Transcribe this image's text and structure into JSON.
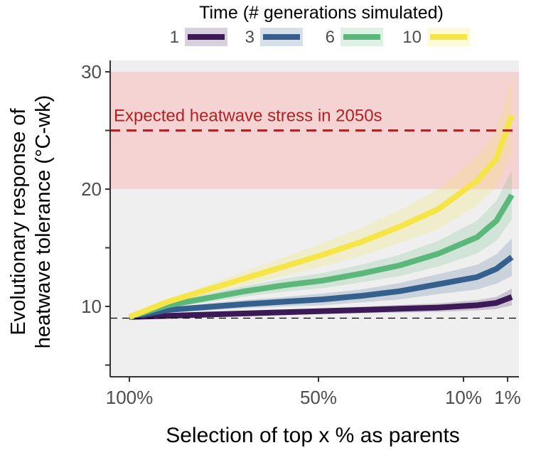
{
  "chart_data": {
    "type": "line",
    "xlabel": "Selection of top x % as parents",
    "ylabel_lines": [
      "Evolutionary response of",
      "heatwave tolerance (°C-wk)"
    ],
    "x": [
      100,
      90,
      80,
      70,
      60,
      50,
      40,
      30,
      20,
      10,
      5,
      1
    ],
    "xlim": [
      100,
      1
    ],
    "x_ticks": [
      100,
      50,
      10,
      1
    ],
    "x_tick_labels": [
      "100%",
      "50%",
      "10%",
      "1%"
    ],
    "ylim": [
      4.5,
      31
    ],
    "y_ticks_major": [
      10,
      20,
      30
    ],
    "y_tick_labels": [
      "10",
      "20",
      "30"
    ],
    "y_ticks_minor": [
      5,
      15,
      25
    ],
    "legend": {
      "title": "Time (# generations simulated)",
      "position": "top"
    },
    "series": [
      {
        "name": "1",
        "color": "#3b1a57",
        "values": [
          9.1,
          9.2,
          9.3,
          9.4,
          9.5,
          9.6,
          9.7,
          9.8,
          9.9,
          10.1,
          10.3,
          10.8
        ],
        "lower": [
          9.1,
          9.12,
          9.18,
          9.24,
          9.3,
          9.36,
          9.42,
          9.48,
          9.54,
          9.66,
          9.78,
          10.08
        ],
        "upper": [
          9.1,
          9.28,
          9.42,
          9.56,
          9.7,
          9.84,
          9.98,
          10.12,
          10.26,
          10.54,
          10.82,
          11.52
        ]
      },
      {
        "name": "3",
        "color": "#35608d",
        "values": [
          9.1,
          9.7,
          9.95,
          10.2,
          10.4,
          10.6,
          10.9,
          11.3,
          11.9,
          12.5,
          13.2,
          14.2
        ],
        "lower": [
          9.1,
          9.5,
          9.65,
          9.85,
          10.0,
          10.1,
          10.35,
          10.6,
          11.05,
          11.45,
          11.95,
          12.6
        ],
        "upper": [
          9.1,
          9.9,
          10.25,
          10.55,
          10.8,
          11.1,
          11.45,
          12.0,
          12.75,
          13.55,
          14.45,
          15.8
        ]
      },
      {
        "name": "6",
        "color": "#5cb87a",
        "values": [
          9.1,
          10.1,
          10.7,
          11.3,
          11.8,
          12.2,
          12.8,
          13.5,
          14.5,
          15.9,
          17.3,
          19.5
        ],
        "lower": [
          9.1,
          9.9,
          10.35,
          10.85,
          11.25,
          11.55,
          12.05,
          12.6,
          13.4,
          14.5,
          15.6,
          17.4
        ],
        "upper": [
          9.1,
          10.3,
          11.05,
          11.75,
          12.35,
          12.85,
          13.55,
          14.4,
          15.6,
          17.3,
          19.0,
          21.6
        ]
      },
      {
        "name": "10",
        "color": "#f6e547",
        "values": [
          9.1,
          10.4,
          11.4,
          12.4,
          13.4,
          14.4,
          15.5,
          16.8,
          18.3,
          20.7,
          22.6,
          26.3
        ],
        "lower": [
          9.1,
          10.15,
          11.0,
          11.8,
          12.6,
          13.4,
          14.3,
          15.4,
          16.6,
          18.6,
          20.2,
          23.2
        ],
        "upper": [
          9.1,
          10.65,
          11.8,
          13.0,
          14.2,
          15.4,
          16.7,
          18.2,
          20.0,
          22.8,
          25.0,
          29.4
        ]
      }
    ],
    "annotations": {
      "stress_band": {
        "from": 20,
        "to": 30,
        "color": "#f5d3d3"
      },
      "stress_line": {
        "y": 25,
        "color": "#b22222",
        "label": "Expected heatwave stress in 2050s"
      },
      "baseline": {
        "y": 9,
        "color": "#000000"
      }
    },
    "panel_background": "#efefef",
    "grid": false
  }
}
